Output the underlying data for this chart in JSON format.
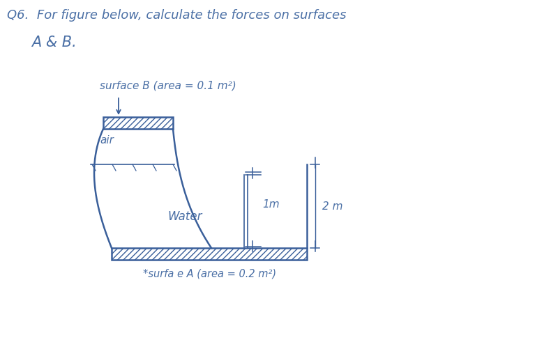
{
  "bg_color": "#ffffff",
  "text_color": "#4a6fa5",
  "line_color": "#3a5f9a",
  "title_line1": "Q6.  For figure below, calculate the forces on surfaces",
  "title_line2": "A & B.",
  "surface_b_label": "surface B (area = 0.1 m²)",
  "air_label": "air",
  "water_label": "Water",
  "surface_a_label": "*surfa e A (area = 0.2 m²)",
  "dim_1m": "1m",
  "dim_2m": "2 m",
  "title_fontsize": 13,
  "label_fontsize": 11,
  "small_fontsize": 10,
  "fig_width": 8.0,
  "fig_height": 4.91
}
